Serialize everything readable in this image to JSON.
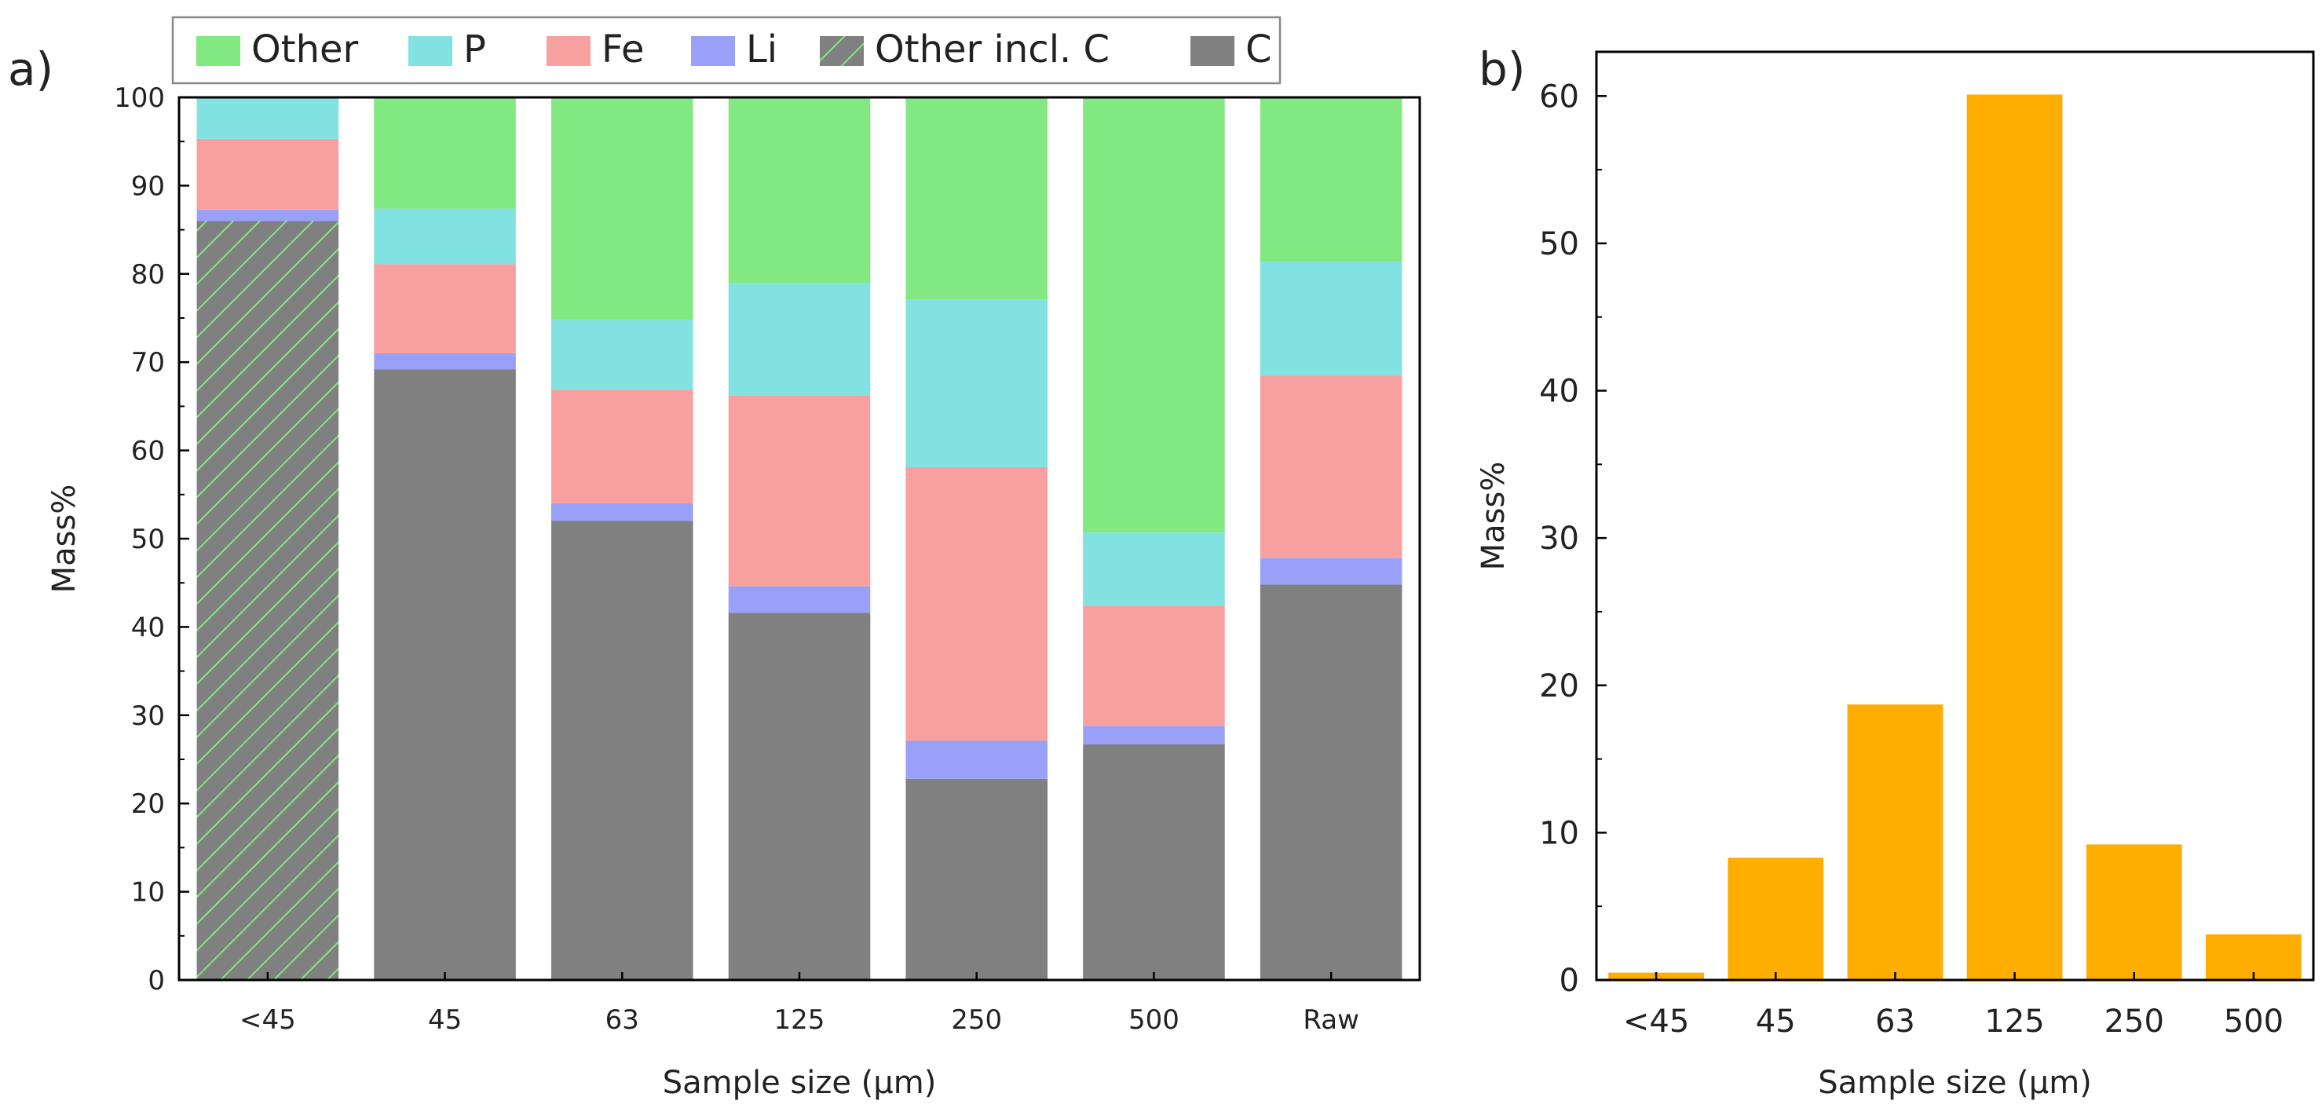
{
  "colors": {
    "other": "#82e882",
    "p": "#82e2e2",
    "fe": "#f8a0a0",
    "li": "#99a0f8",
    "c": "#808080",
    "bar_b": "#ffad00",
    "hatch": "#82e882"
  },
  "legend": {
    "entries": [
      {
        "key": "other",
        "label": "Other",
        "hatch": false
      },
      {
        "key": "p",
        "label": "P",
        "hatch": false
      },
      {
        "key": "fe",
        "label": "Fe",
        "hatch": false
      },
      {
        "key": "li",
        "label": "Li",
        "hatch": false
      },
      {
        "key": "c",
        "label": "Other incl. C",
        "hatch": true
      },
      {
        "key": "c",
        "label": "C",
        "hatch": false
      }
    ]
  },
  "chart_data": [
    {
      "type": "bar",
      "stacked": true,
      "panel_label": "a)",
      "title": "",
      "xlabel": "Sample size (μm)",
      "ylabel": "Mass%",
      "ylim": [
        0,
        100
      ],
      "yticks": [
        0,
        10,
        20,
        30,
        40,
        50,
        60,
        70,
        80,
        90,
        100
      ],
      "categories": [
        "<45",
        "45",
        "63",
        "125",
        "250",
        "500",
        "Raw"
      ],
      "series": [
        {
          "name": "C",
          "key": "c",
          "values": [
            86,
            69.2,
            52,
            41.6,
            22.8,
            26.7,
            44.8
          ],
          "hatch_first": true
        },
        {
          "name": "Li",
          "key": "li",
          "values": [
            1.3,
            1.8,
            2.0,
            3.0,
            4.3,
            2.1,
            3.0
          ]
        },
        {
          "name": "Fe",
          "key": "fe",
          "values": [
            8.0,
            10.1,
            12.9,
            21.6,
            31.0,
            13.6,
            20.7
          ]
        },
        {
          "name": "P",
          "key": "p",
          "values": [
            4.7,
            6.3,
            7.9,
            12.8,
            19.0,
            8.3,
            12.9
          ]
        },
        {
          "name": "Other",
          "key": "other",
          "values": [
            0,
            12.6,
            25.2,
            21.0,
            22.9,
            49.3,
            18.6
          ]
        }
      ],
      "legend_position": "top"
    },
    {
      "type": "bar",
      "panel_label": "b)",
      "title": "",
      "xlabel": "Sample size (μm)",
      "ylabel": "Mass%",
      "ylim": [
        0,
        63
      ],
      "yticks": [
        0,
        10,
        20,
        30,
        40,
        50,
        60
      ],
      "categories": [
        "<45",
        "45",
        "63",
        "125",
        "250",
        "500"
      ],
      "values": [
        0.5,
        8.3,
        18.7,
        60.1,
        9.2,
        3.1
      ]
    }
  ]
}
